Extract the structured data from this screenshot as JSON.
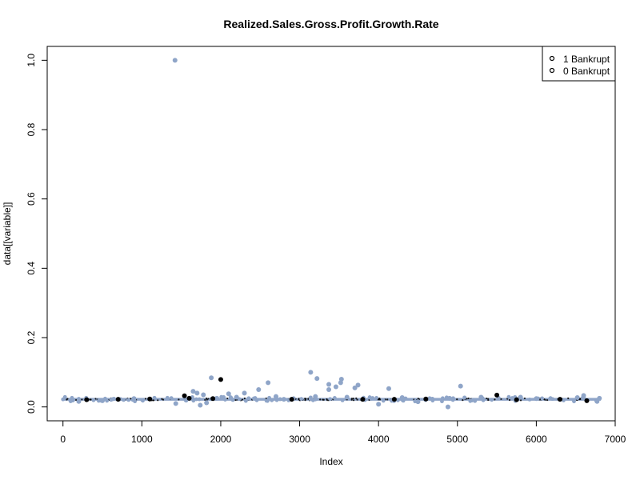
{
  "chart_data": {
    "type": "scatter",
    "title": "Realized.Sales.Gross.Profit.Growth.Rate",
    "xlabel": "Index",
    "ylabel": "data[[variable]]",
    "xlim": [
      -200,
      7000
    ],
    "ylim": [
      -0.04,
      1.04
    ],
    "x_ticks": [
      0,
      1000,
      2000,
      3000,
      4000,
      5000,
      6000,
      7000
    ],
    "y_ticks": [
      0.0,
      0.2,
      0.4,
      0.6,
      0.8,
      1.0
    ],
    "x_tick_labels": [
      "0",
      "1000",
      "2000",
      "3000",
      "4000",
      "5000",
      "6000",
      "7000"
    ],
    "y_tick_labels": [
      "0.0",
      "0.2",
      "0.4",
      "0.6",
      "0.8",
      "1.0"
    ],
    "grid": false,
    "legend_position": "top-right",
    "baseline_band": {
      "x_start": 0,
      "x_end": 6819,
      "y_low": 0.018,
      "y_high": 0.026
    },
    "colors": {
      "bankrupt_1": "#000000",
      "bankrupt_0": "#8fa5c8"
    },
    "series": [
      {
        "name": "1 Bankrupt",
        "color": "#000000",
        "points": [
          [
            1540,
            0.032
          ],
          [
            2000,
            0.079
          ],
          [
            5500,
            0.034
          ],
          [
            1900,
            0.024
          ],
          [
            3800,
            0.022
          ],
          [
            4600,
            0.023
          ],
          [
            6640,
            0.018
          ],
          [
            700,
            0.022
          ],
          [
            300,
            0.021
          ],
          [
            5750,
            0.021
          ],
          [
            1100,
            0.023
          ],
          [
            2900,
            0.022
          ],
          [
            1600,
            0.025
          ],
          [
            6300,
            0.022
          ],
          [
            4200,
            0.022
          ]
        ]
      },
      {
        "name": "0 Bankrupt",
        "color": "#8fa5c8",
        "points": [
          [
            1420,
            1.0
          ],
          [
            1880,
            0.084
          ],
          [
            3140,
            0.1
          ],
          [
            3220,
            0.082
          ],
          [
            3530,
            0.08
          ],
          [
            3370,
            0.065
          ],
          [
            3460,
            0.058
          ],
          [
            3740,
            0.063
          ],
          [
            3700,
            0.055
          ],
          [
            3370,
            0.05
          ],
          [
            2600,
            0.07
          ],
          [
            2480,
            0.05
          ],
          [
            4130,
            0.053
          ],
          [
            5040,
            0.06
          ],
          [
            3520,
            0.07
          ],
          [
            1650,
            0.045
          ],
          [
            1700,
            0.04
          ],
          [
            2100,
            0.038
          ],
          [
            2300,
            0.04
          ],
          [
            2700,
            0.03
          ],
          [
            1780,
            0.035
          ],
          [
            1820,
            0.012
          ],
          [
            1740,
            0.005
          ],
          [
            1430,
            0.01
          ],
          [
            1560,
            0.02
          ],
          [
            1950,
            0.025
          ],
          [
            2200,
            0.028
          ],
          [
            4000,
            0.008
          ],
          [
            4880,
            0.0
          ],
          [
            4900,
            0.025
          ],
          [
            5800,
            0.028
          ],
          [
            6600,
            0.033
          ],
          [
            6520,
            0.027
          ],
          [
            6770,
            0.016
          ],
          [
            6800,
            0.025
          ],
          [
            200,
            0.016
          ],
          [
            500,
            0.018
          ],
          [
            900,
            0.024
          ],
          [
            3200,
            0.03
          ],
          [
            3600,
            0.028
          ],
          [
            4500,
            0.015
          ],
          [
            5300,
            0.028
          ],
          [
            6000,
            0.024
          ],
          [
            2800,
            0.022
          ],
          [
            4300,
            0.027
          ]
        ]
      }
    ]
  }
}
